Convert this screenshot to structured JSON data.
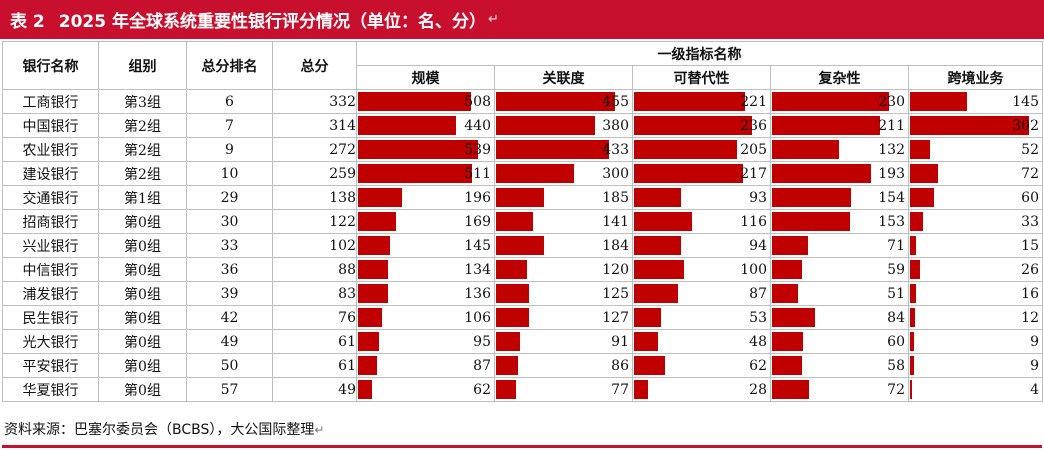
{
  "title": {
    "number": "表 2",
    "text": "2025 年全球系统重要性银行评分情况（单位：名、分）",
    "return_mark": "↵"
  },
  "headers": {
    "bank": "银行名称",
    "group": "组别",
    "rank": "总分排名",
    "total": "总分",
    "indicators_group": "一级指标名称",
    "indicators": [
      "规模",
      "关联度",
      "可替代性",
      "复杂性",
      "跨境业务"
    ]
  },
  "indicator_max": [
    540,
    460,
    240,
    235,
    305
  ],
  "rows": [
    {
      "bank": "工商银行",
      "group": "第3组",
      "rank": "6",
      "total": "332",
      "values": [
        508,
        455,
        221,
        230,
        145
      ]
    },
    {
      "bank": "中国银行",
      "group": "第2组",
      "rank": "7",
      "total": "314",
      "values": [
        440,
        380,
        236,
        211,
        302
      ]
    },
    {
      "bank": "农业银行",
      "group": "第2组",
      "rank": "9",
      "total": "272",
      "values": [
        539,
        433,
        205,
        132,
        52
      ]
    },
    {
      "bank": "建设银行",
      "group": "第2组",
      "rank": "10",
      "total": "259",
      "values": [
        511,
        300,
        217,
        193,
        72
      ]
    },
    {
      "bank": "交通银行",
      "group": "第1组",
      "rank": "29",
      "total": "138",
      "values": [
        196,
        185,
        93,
        154,
        60
      ]
    },
    {
      "bank": "招商银行",
      "group": "第0组",
      "rank": "30",
      "total": "122",
      "values": [
        169,
        141,
        116,
        153,
        33
      ]
    },
    {
      "bank": "兴业银行",
      "group": "第0组",
      "rank": "33",
      "total": "102",
      "values": [
        145,
        184,
        94,
        71,
        15
      ]
    },
    {
      "bank": "中信银行",
      "group": "第0组",
      "rank": "36",
      "total": "88",
      "values": [
        134,
        120,
        100,
        59,
        26
      ]
    },
    {
      "bank": "浦发银行",
      "group": "第0组",
      "rank": "39",
      "total": "83",
      "values": [
        136,
        125,
        87,
        51,
        16
      ]
    },
    {
      "bank": "民生银行",
      "group": "第0组",
      "rank": "42",
      "total": "76",
      "values": [
        106,
        127,
        53,
        84,
        12
      ]
    },
    {
      "bank": "光大银行",
      "group": "第0组",
      "rank": "49",
      "total": "61",
      "values": [
        95,
        91,
        48,
        60,
        9
      ]
    },
    {
      "bank": "平安银行",
      "group": "第0组",
      "rank": "50",
      "total": "61",
      "values": [
        87,
        86,
        62,
        58,
        9
      ]
    },
    {
      "bank": "华夏银行",
      "group": "第0组",
      "rank": "57",
      "total": "49",
      "values": [
        62,
        77,
        28,
        72,
        4
      ]
    }
  ],
  "source": "资料来源：巴塞尔委员会（BCBS），大公国际整理",
  "colors": {
    "accent": "#c8102e",
    "bar": "#c00000"
  }
}
